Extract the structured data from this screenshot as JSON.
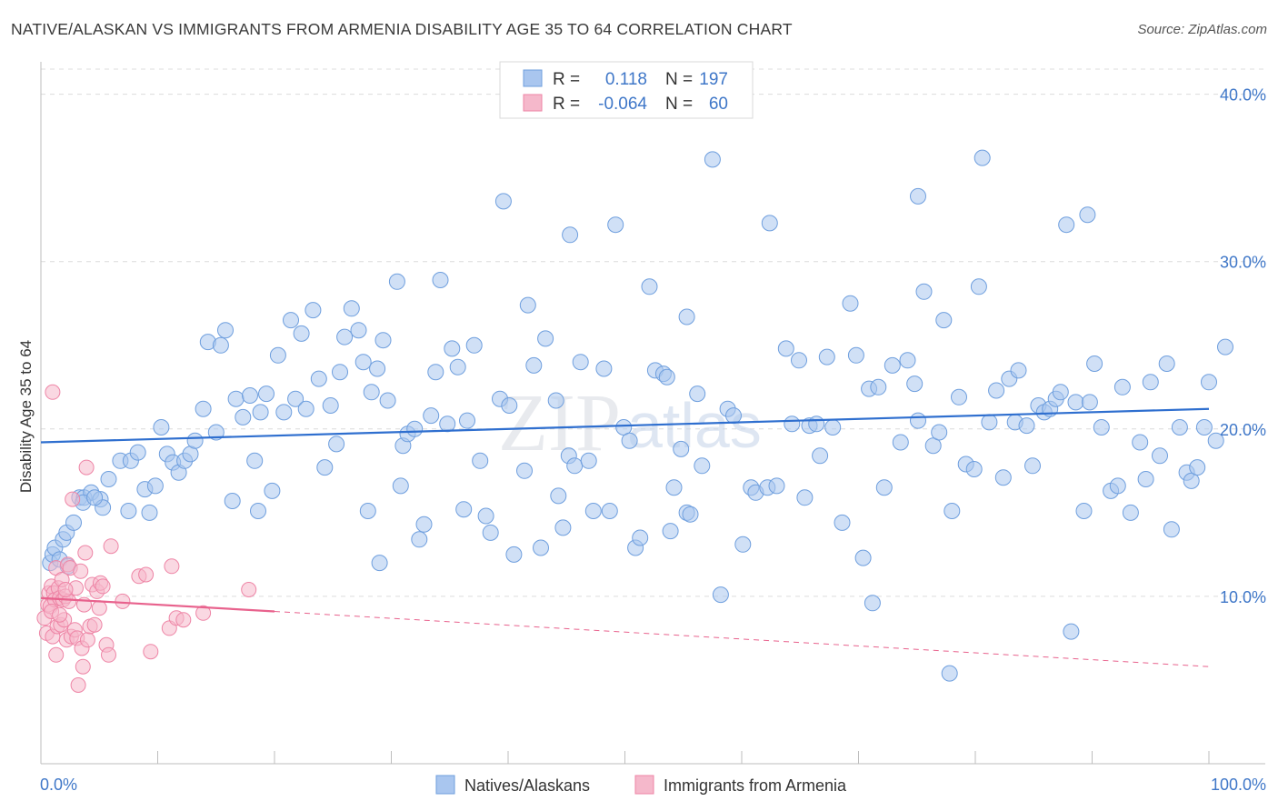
{
  "title": "NATIVE/ALASKAN VS IMMIGRANTS FROM ARMENIA DISABILITY AGE 35 TO 64 CORRELATION CHART",
  "source": "Source: ZipAtlas.com",
  "watermark": {
    "zip": "ZIP",
    "atlas": "atlas"
  },
  "legend_top": {
    "r_label": "R =",
    "n_label": "N =",
    "rows": [
      {
        "r": "0.118",
        "n": "197",
        "color": "#a9c6ef"
      },
      {
        "r": "-0.064",
        "n": "60",
        "color": "#f5b8cb"
      }
    ]
  },
  "legend_bottom": [
    {
      "label": "Natives/Alaskans",
      "color": "#a9c6ef"
    },
    {
      "label": "Immigrants from Armenia",
      "color": "#f5b8cb"
    }
  ],
  "chart_data": {
    "type": "scatter",
    "title": "NATIVE/ALASKAN VS IMMIGRANTS FROM ARMENIA DISABILITY AGE 35 TO 64 CORRELATION CHART",
    "xlabel": "",
    "ylabel": "Disability Age 35 to 64",
    "xlim": [
      0,
      100
    ],
    "ylim": [
      0,
      41.5
    ],
    "x_tick_labels": [
      "0.0%",
      "100.0%"
    ],
    "y_ticks": [
      10,
      20,
      30,
      40
    ],
    "y_tick_labels": [
      "10.0%",
      "20.0%",
      "30.0%",
      "40.0%"
    ],
    "grid": true,
    "colors": {
      "blue": "#6f9fde",
      "blue_fill": "#a9c6ef",
      "blue_line": "#2f6fcf",
      "pink": "#ee85a6",
      "pink_fill": "#f5b8cb",
      "pink_line": "#e8628d"
    },
    "series": [
      {
        "name": "Natives/Alaskans",
        "trend": {
          "x": [
            0,
            100
          ],
          "y": [
            19.2,
            21.2
          ],
          "style": "solid"
        },
        "points": [
          [
            0.8,
            12.0
          ],
          [
            1.0,
            12.5
          ],
          [
            1.2,
            12.9
          ],
          [
            1.6,
            12.2
          ],
          [
            1.9,
            13.4
          ],
          [
            2.2,
            13.8
          ],
          [
            2.8,
            14.4
          ],
          [
            3.3,
            15.9
          ],
          [
            3.7,
            15.9
          ],
          [
            4.3,
            16.2
          ],
          [
            5.1,
            15.8
          ],
          [
            5.3,
            15.3
          ],
          [
            5.8,
            17.0
          ],
          [
            6.8,
            18.1
          ],
          [
            7.5,
            15.1
          ],
          [
            7.7,
            18.1
          ],
          [
            8.3,
            18.6
          ],
          [
            8.9,
            16.4
          ],
          [
            9.3,
            15.0
          ],
          [
            9.8,
            16.6
          ],
          [
            10.3,
            20.1
          ],
          [
            10.8,
            18.5
          ],
          [
            11.3,
            18.0
          ],
          [
            11.8,
            17.4
          ],
          [
            12.3,
            18.1
          ],
          [
            12.8,
            18.5
          ],
          [
            13.2,
            19.3
          ],
          [
            13.9,
            21.2
          ],
          [
            14.3,
            25.2
          ],
          [
            15.0,
            19.8
          ],
          [
            15.4,
            25.0
          ],
          [
            15.8,
            25.9
          ],
          [
            16.4,
            15.7
          ],
          [
            16.7,
            21.8
          ],
          [
            17.3,
            20.7
          ],
          [
            17.9,
            22.0
          ],
          [
            18.3,
            18.1
          ],
          [
            18.8,
            21.0
          ],
          [
            19.3,
            22.1
          ],
          [
            19.8,
            16.3
          ],
          [
            20.3,
            24.4
          ],
          [
            20.8,
            21.0
          ],
          [
            21.4,
            26.5
          ],
          [
            21.8,
            21.8
          ],
          [
            22.3,
            25.7
          ],
          [
            22.7,
            21.2
          ],
          [
            23.3,
            27.1
          ],
          [
            23.8,
            23.0
          ],
          [
            24.3,
            17.7
          ],
          [
            24.8,
            21.4
          ],
          [
            25.3,
            19.1
          ],
          [
            25.6,
            23.4
          ],
          [
            26.0,
            25.5
          ],
          [
            26.6,
            27.2
          ],
          [
            27.2,
            25.9
          ],
          [
            27.6,
            24.0
          ],
          [
            28.0,
            15.1
          ],
          [
            28.3,
            22.2
          ],
          [
            28.8,
            23.6
          ],
          [
            29.3,
            25.3
          ],
          [
            29.7,
            21.7
          ],
          [
            30.5,
            28.8
          ],
          [
            31.0,
            19.0
          ],
          [
            31.4,
            19.7
          ],
          [
            32.0,
            20.0
          ],
          [
            32.4,
            13.4
          ],
          [
            32.8,
            14.3
          ],
          [
            33.4,
            20.8
          ],
          [
            33.8,
            23.4
          ],
          [
            34.2,
            28.9
          ],
          [
            34.8,
            20.3
          ],
          [
            35.2,
            24.8
          ],
          [
            35.7,
            23.7
          ],
          [
            36.2,
            15.2
          ],
          [
            36.5,
            20.5
          ],
          [
            37.1,
            25.0
          ],
          [
            37.6,
            18.1
          ],
          [
            38.1,
            14.8
          ],
          [
            38.5,
            13.8
          ],
          [
            39.3,
            21.8
          ],
          [
            39.6,
            33.6
          ],
          [
            40.1,
            21.4
          ],
          [
            40.5,
            12.5
          ],
          [
            41.4,
            17.5
          ],
          [
            41.7,
            27.4
          ],
          [
            42.2,
            23.8
          ],
          [
            42.8,
            12.9
          ],
          [
            43.2,
            25.4
          ],
          [
            44.1,
            21.7
          ],
          [
            44.3,
            16.0
          ],
          [
            44.7,
            14.1
          ],
          [
            45.2,
            18.4
          ],
          [
            45.7,
            17.8
          ],
          [
            46.2,
            24.0
          ],
          [
            46.9,
            18.1
          ],
          [
            47.3,
            15.1
          ],
          [
            48.2,
            23.6
          ],
          [
            48.7,
            15.1
          ],
          [
            49.2,
            32.2
          ],
          [
            49.9,
            20.1
          ],
          [
            50.4,
            19.3
          ],
          [
            50.9,
            12.9
          ],
          [
            51.3,
            13.5
          ],
          [
            52.1,
            28.5
          ],
          [
            52.6,
            23.5
          ],
          [
            53.3,
            23.3
          ],
          [
            53.6,
            23.1
          ],
          [
            54.2,
            16.5
          ],
          [
            54.8,
            18.8
          ],
          [
            55.3,
            15.0
          ],
          [
            55.6,
            14.9
          ],
          [
            56.2,
            22.1
          ],
          [
            56.6,
            17.8
          ],
          [
            57.5,
            36.1
          ],
          [
            58.2,
            10.1
          ],
          [
            58.8,
            21.2
          ],
          [
            59.3,
            20.8
          ],
          [
            60.1,
            13.1
          ],
          [
            60.8,
            16.5
          ],
          [
            61.2,
            16.2
          ],
          [
            62.2,
            16.5
          ],
          [
            62.4,
            32.3
          ],
          [
            63.0,
            16.6
          ],
          [
            63.8,
            24.8
          ],
          [
            64.3,
            20.3
          ],
          [
            64.9,
            24.1
          ],
          [
            65.4,
            15.9
          ],
          [
            65.8,
            20.2
          ],
          [
            66.4,
            20.3
          ],
          [
            66.7,
            18.4
          ],
          [
            67.3,
            24.3
          ],
          [
            67.8,
            20.1
          ],
          [
            68.6,
            14.4
          ],
          [
            69.3,
            27.5
          ],
          [
            69.8,
            24.4
          ],
          [
            70.4,
            12.3
          ],
          [
            70.9,
            22.4
          ],
          [
            71.2,
            9.6
          ],
          [
            71.7,
            22.5
          ],
          [
            72.2,
            16.5
          ],
          [
            72.9,
            23.8
          ],
          [
            73.6,
            19.2
          ],
          [
            74.2,
            24.1
          ],
          [
            74.8,
            22.7
          ],
          [
            75.1,
            20.5
          ],
          [
            75.6,
            28.2
          ],
          [
            76.4,
            19.0
          ],
          [
            76.9,
            19.8
          ],
          [
            77.3,
            26.5
          ],
          [
            78.0,
            15.1
          ],
          [
            78.6,
            21.9
          ],
          [
            79.2,
            17.9
          ],
          [
            79.9,
            17.6
          ],
          [
            80.6,
            36.2
          ],
          [
            81.2,
            20.4
          ],
          [
            81.8,
            22.3
          ],
          [
            82.4,
            17.1
          ],
          [
            82.9,
            23.0
          ],
          [
            83.4,
            20.4
          ],
          [
            83.7,
            23.5
          ],
          [
            84.4,
            20.2
          ],
          [
            84.9,
            17.8
          ],
          [
            85.4,
            21.4
          ],
          [
            85.9,
            21.0
          ],
          [
            86.4,
            21.2
          ],
          [
            86.9,
            21.8
          ],
          [
            87.3,
            22.2
          ],
          [
            87.8,
            32.2
          ],
          [
            88.2,
            7.9
          ],
          [
            88.6,
            21.6
          ],
          [
            89.3,
            15.1
          ],
          [
            89.8,
            21.6
          ],
          [
            90.2,
            23.9
          ],
          [
            90.8,
            20.1
          ],
          [
            91.6,
            16.3
          ],
          [
            92.2,
            16.6
          ],
          [
            92.6,
            22.5
          ],
          [
            93.3,
            15.0
          ],
          [
            94.1,
            19.2
          ],
          [
            94.6,
            17.0
          ],
          [
            95.0,
            22.8
          ],
          [
            95.8,
            18.4
          ],
          [
            96.4,
            23.9
          ],
          [
            96.8,
            14.0
          ],
          [
            97.5,
            20.1
          ],
          [
            98.1,
            17.4
          ],
          [
            98.5,
            16.9
          ],
          [
            99.0,
            17.7
          ],
          [
            99.6,
            20.1
          ],
          [
            100.0,
            22.8
          ],
          [
            100.6,
            19.3
          ],
          [
            101.4,
            24.9
          ],
          [
            77.8,
            5.4
          ],
          [
            75.1,
            33.9
          ],
          [
            89.6,
            32.8
          ],
          [
            55.3,
            26.7
          ],
          [
            80.3,
            28.5
          ],
          [
            53.9,
            13.9
          ],
          [
            29.0,
            12.0
          ],
          [
            30.8,
            16.6
          ],
          [
            18.6,
            15.1
          ],
          [
            45.3,
            31.6
          ],
          [
            2.3,
            11.8
          ],
          [
            3.6,
            15.6
          ],
          [
            4.6,
            15.9
          ]
        ]
      },
      {
        "name": "Immigrants from Armenia",
        "trend": {
          "x": [
            0,
            20,
            100
          ],
          "y": [
            9.9,
            9.1,
            5.8
          ],
          "style": "solid-then-dashed"
        },
        "points": [
          [
            0.3,
            8.7
          ],
          [
            0.5,
            7.8
          ],
          [
            0.6,
            9.5
          ],
          [
            0.7,
            10.2
          ],
          [
            0.8,
            9.4
          ],
          [
            0.9,
            10.6
          ],
          [
            1.0,
            7.6
          ],
          [
            1.1,
            10.2
          ],
          [
            1.2,
            9.8
          ],
          [
            1.3,
            11.7
          ],
          [
            1.3,
            6.5
          ],
          [
            1.4,
            8.2
          ],
          [
            1.5,
            10.5
          ],
          [
            1.6,
            9.9
          ],
          [
            1.7,
            8.3
          ],
          [
            1.8,
            11.0
          ],
          [
            1.9,
            9.8
          ],
          [
            2.0,
            8.6
          ],
          [
            2.1,
            10.0
          ],
          [
            2.2,
            7.4
          ],
          [
            2.3,
            11.9
          ],
          [
            2.4,
            9.7
          ],
          [
            2.5,
            11.7
          ],
          [
            2.6,
            7.6
          ],
          [
            2.7,
            15.8
          ],
          [
            2.9,
            8.0
          ],
          [
            3.0,
            10.5
          ],
          [
            3.1,
            7.5
          ],
          [
            3.2,
            4.7
          ],
          [
            3.4,
            11.5
          ],
          [
            3.5,
            6.9
          ],
          [
            3.6,
            5.8
          ],
          [
            3.7,
            9.5
          ],
          [
            3.8,
            12.6
          ],
          [
            3.9,
            17.7
          ],
          [
            4.0,
            7.4
          ],
          [
            4.2,
            8.2
          ],
          [
            4.4,
            10.7
          ],
          [
            4.6,
            8.3
          ],
          [
            4.8,
            10.3
          ],
          [
            5.0,
            9.3
          ],
          [
            5.1,
            10.8
          ],
          [
            5.3,
            10.6
          ],
          [
            5.6,
            7.1
          ],
          [
            5.8,
            6.5
          ],
          [
            6.0,
            13.0
          ],
          [
            7.0,
            9.7
          ],
          [
            8.4,
            11.2
          ],
          [
            9.0,
            11.3
          ],
          [
            9.4,
            6.7
          ],
          [
            11.0,
            8.1
          ],
          [
            11.2,
            11.8
          ],
          [
            11.6,
            8.7
          ],
          [
            12.2,
            8.6
          ],
          [
            13.9,
            9.0
          ],
          [
            17.8,
            10.4
          ],
          [
            1.0,
            22.2
          ],
          [
            0.9,
            9.1
          ],
          [
            1.6,
            8.9
          ],
          [
            2.1,
            10.4
          ]
        ]
      }
    ]
  }
}
